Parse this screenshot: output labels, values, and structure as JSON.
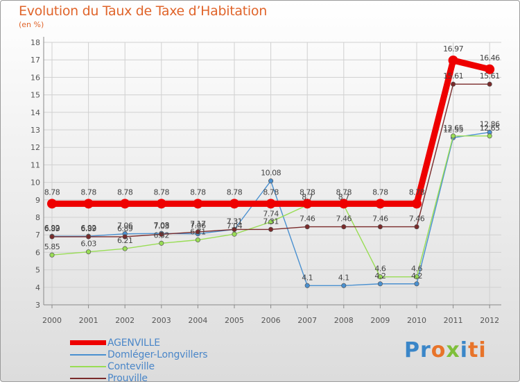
{
  "chart_data": {
    "type": "line",
    "title": "Evolution du Taux de Taxe d’Habitation",
    "subtitle": "(en %)",
    "xlabel": "",
    "ylabel": "",
    "ylim": [
      3,
      18
    ],
    "yticks": [
      "3",
      "4",
      "5",
      "6",
      "7",
      "8",
      "9",
      "10",
      "11",
      "12",
      "13",
      "14",
      "15",
      "16",
      "17",
      "18"
    ],
    "categories": [
      "2000",
      "2001",
      "2002",
      "2003",
      "2004",
      "2005",
      "2006",
      "2007",
      "2008",
      "2009",
      "2010",
      "2011",
      "2012"
    ],
    "grid": true,
    "legend_position": "bottom-left",
    "series": [
      {
        "name": "AGENVILLE",
        "color": "#ee0000",
        "values": [
          8.78,
          8.78,
          8.78,
          8.78,
          8.78,
          8.78,
          8.78,
          8.78,
          8.78,
          8.78,
          8.78,
          16.97,
          16.46
        ],
        "labels": [
          "8.78",
          "8.78",
          "8.78",
          "8.78",
          "8.78",
          "8.78",
          "8.78",
          "8.78",
          "8.78",
          "8.78",
          "8.78",
          "16.97",
          "16.46"
        ]
      },
      {
        "name": "Domléger-Longvillers",
        "color": "#4a90d0",
        "values": [
          6.92,
          6.92,
          7.06,
          7.08,
          7.06,
          7.31,
          10.08,
          4.1,
          4.1,
          4.2,
          4.2,
          12.55,
          12.86
        ],
        "labels": [
          "6.92",
          "6.92",
          "7.06",
          "7.08",
          "7.06",
          "7.31",
          "10.08",
          "4.1",
          "4.1",
          "4.2",
          "4.2",
          "12.55",
          "12.86"
        ]
      },
      {
        "name": "Conteville",
        "color": "#99dd55",
        "values": [
          5.85,
          6.03,
          6.21,
          6.52,
          6.71,
          7.04,
          7.74,
          8.7,
          8.7,
          4.6,
          4.6,
          12.65,
          12.65
        ],
        "labels": [
          "5.85",
          "6.03",
          "6.21",
          "6.52",
          "6.71",
          "7.04",
          "7.74",
          "8.7",
          "8.7",
          "4.6",
          "4.6",
          "12.65",
          "12.65"
        ]
      },
      {
        "name": "Prouville",
        "color": "#7a2a2a",
        "values": [
          6.89,
          6.89,
          6.89,
          7.03,
          7.17,
          7.31,
          7.31,
          7.46,
          7.46,
          7.46,
          7.46,
          15.61,
          15.61
        ],
        "labels": [
          "6.89",
          "6.89",
          "6.89",
          "7.03",
          "7.17",
          "7.31",
          "7.31",
          "7.46",
          "7.46",
          "7.46",
          "7.46",
          "15.61",
          "15.61"
        ]
      }
    ]
  },
  "branding": {
    "logo_parts": [
      "Pr",
      "o",
      "x",
      "i",
      "ti"
    ]
  }
}
